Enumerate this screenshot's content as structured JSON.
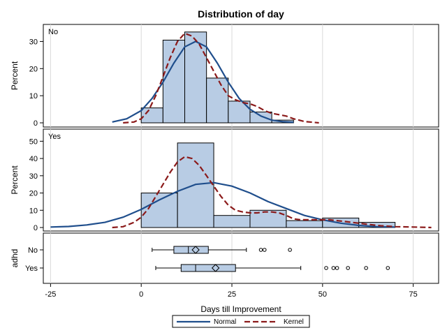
{
  "chart_data": {
    "type": "bar",
    "title": "Distribution of day",
    "xlabel": "Days till Improvement",
    "ylabel": "Percent",
    "xlim": [
      -27,
      82
    ],
    "x_ticks": [
      -25,
      0,
      25,
      50,
      75
    ],
    "colors": {
      "bar_fill": "#b8cce4",
      "bar_stroke": "#000000",
      "normal": "#1f4e8c",
      "kernel": "#8b1a1a",
      "grid": "#d9d9d9"
    },
    "grid": true,
    "legend": {
      "position": "bottom-center",
      "items": [
        {
          "label": "Normal",
          "style": "solid",
          "color_key": "normal"
        },
        {
          "label": "Kernel",
          "style": "dashed",
          "color_key": "kernel"
        }
      ]
    },
    "panels": [
      {
        "label": "No",
        "ylim": [
          0,
          35
        ],
        "y_ticks": [
          0,
          10,
          20,
          30
        ],
        "bins": [
          {
            "x0": 0,
            "x1": 6,
            "value": 5.5
          },
          {
            "x0": 6,
            "x1": 12,
            "value": 30.5
          },
          {
            "x0": 12,
            "x1": 18,
            "value": 33.5
          },
          {
            "x0": 18,
            "x1": 24,
            "value": 16.5
          },
          {
            "x0": 24,
            "x1": 30,
            "value": 8
          },
          {
            "x0": 30,
            "x1": 36,
            "value": 4
          },
          {
            "x0": 36,
            "x1": 42,
            "value": 1
          }
        ],
        "normal": {
          "x": [
            -8,
            -4,
            0,
            3,
            6,
            9,
            12,
            15,
            18,
            21,
            24,
            27,
            30,
            33,
            36,
            39,
            42
          ],
          "y": [
            0.3,
            1.5,
            4.5,
            9,
            15,
            22,
            28,
            30,
            28,
            22,
            15,
            9,
            5,
            2.5,
            1,
            0.4,
            0.2
          ]
        },
        "kernel": {
          "x": [
            -5,
            -2,
            0,
            2,
            4,
            6,
            8,
            10,
            12,
            14,
            16,
            18,
            20,
            22,
            24,
            26,
            28,
            30,
            32,
            34,
            36,
            38,
            40,
            42,
            45,
            49
          ],
          "y": [
            0,
            0.3,
            1.5,
            4.5,
            10,
            17,
            24,
            30,
            33,
            32,
            29,
            24,
            19,
            14,
            10,
            8.5,
            7.5,
            7,
            6,
            4.5,
            3.5,
            3,
            2.5,
            1.5,
            0.5,
            0
          ]
        }
      },
      {
        "label": "Yes",
        "ylim": [
          0,
          55
        ],
        "y_ticks": [
          0,
          10,
          20,
          30,
          40,
          50
        ],
        "bins": [
          {
            "x0": 0,
            "x1": 10,
            "value": 20
          },
          {
            "x0": 10,
            "x1": 20,
            "value": 49
          },
          {
            "x0": 20,
            "x1": 30,
            "value": 7
          },
          {
            "x0": 30,
            "x1": 40,
            "value": 10
          },
          {
            "x0": 40,
            "x1": 50,
            "value": 4
          },
          {
            "x0": 50,
            "x1": 60,
            "value": 5.5
          },
          {
            "x0": 60,
            "x1": 70,
            "value": 3
          }
        ],
        "normal": {
          "x": [
            -25,
            -20,
            -15,
            -10,
            -5,
            0,
            5,
            10,
            15,
            20,
            25,
            30,
            35,
            40,
            45,
            50,
            55,
            60,
            65,
            70
          ],
          "y": [
            0.3,
            0.6,
            1.5,
            3,
            6,
            10.5,
            16,
            21,
            25,
            26,
            24,
            20,
            15,
            11,
            7,
            4.5,
            2.5,
            1.2,
            0.5,
            0.3
          ]
        },
        "kernel": {
          "x": [
            -8,
            -5,
            -2,
            0,
            2,
            4,
            6,
            8,
            10,
            12,
            14,
            16,
            18,
            20,
            22,
            24,
            26,
            28,
            30,
            32,
            34,
            36,
            38,
            40,
            42,
            44,
            46,
            48,
            50,
            52,
            54,
            56,
            58,
            60,
            62,
            64,
            66,
            70,
            75,
            80
          ],
          "y": [
            0,
            0.5,
            3,
            6,
            11,
            18,
            25,
            32,
            38,
            41,
            40,
            36,
            30,
            24,
            18,
            13,
            10,
            9,
            8.5,
            8.5,
            9,
            9,
            8.5,
            7,
            5,
            4.5,
            4.5,
            4.5,
            4.5,
            4.5,
            4,
            3.5,
            3,
            2.5,
            2,
            1.5,
            1,
            0.5,
            0.3,
            0
          ]
        }
      }
    ],
    "boxplot": {
      "ylabel": "adhd",
      "groups": [
        {
          "label": "No",
          "whisker_low": 3,
          "q1": 9,
          "median": 13,
          "mean": 15,
          "q3": 18.5,
          "whisker_high": 29,
          "outliers": [
            33,
            34,
            41
          ]
        },
        {
          "label": "Yes",
          "whisker_low": 4,
          "q1": 11,
          "median": 15,
          "mean": 20.5,
          "q3": 26,
          "whisker_high": 44,
          "outliers": [
            51,
            53,
            54,
            57,
            62,
            68
          ]
        }
      ]
    }
  }
}
